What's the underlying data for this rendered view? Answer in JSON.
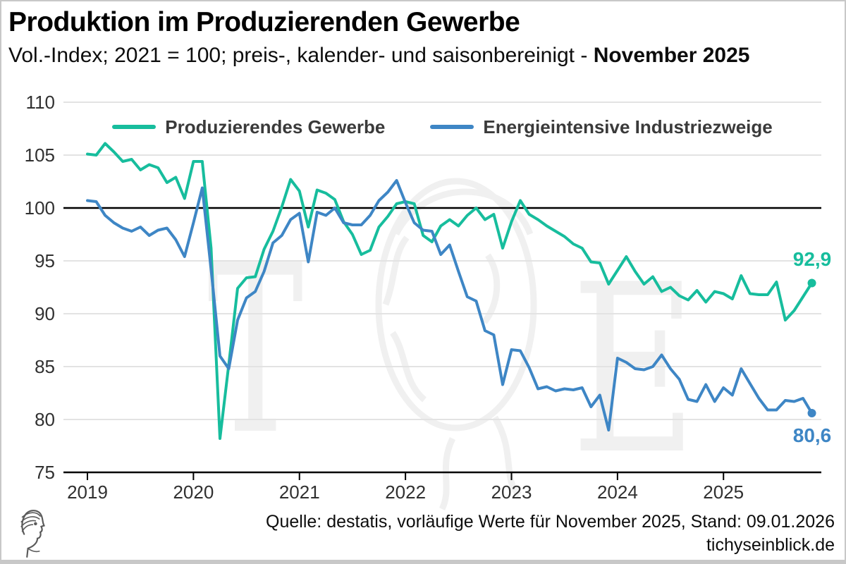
{
  "header": {
    "title": "Produktion im Produzierenden Gewerbe",
    "subtitle": "Vol.-Index; 2021 = 100; preis-, kalender- und saisonbereinigt - ",
    "subtitle_highlight": "November 2025"
  },
  "legend": {
    "items": [
      {
        "label": "Produzierendes Gewerbe",
        "color": "#17bd9d"
      },
      {
        "label": "Energieintensive Industriezweige",
        "color": "#3e86c5"
      }
    ]
  },
  "chart_data": {
    "type": "line",
    "title": "Produktion im Produzierenden Gewerbe",
    "subtitle": "Vol.-Index; 2021 = 100; preis-, kalender- und saisonbereinigt - November 2025",
    "frequency": "monthly",
    "x_start": "2019-01",
    "x_end": "2025-11",
    "ylim": [
      75,
      110
    ],
    "yticks": [
      110,
      105,
      100,
      95,
      90,
      85,
      80,
      75
    ],
    "xticks": [
      2019,
      2020,
      2021,
      2022,
      2023,
      2024,
      2025
    ],
    "baseline": 100,
    "grid": "horizontal",
    "legend_position": "top-inside",
    "months": [
      "2019-01",
      "2019-02",
      "2019-03",
      "2019-04",
      "2019-05",
      "2019-06",
      "2019-07",
      "2019-08",
      "2019-09",
      "2019-10",
      "2019-11",
      "2019-12",
      "2020-01",
      "2020-02",
      "2020-03",
      "2020-04",
      "2020-05",
      "2020-06",
      "2020-07",
      "2020-08",
      "2020-09",
      "2020-10",
      "2020-11",
      "2020-12",
      "2021-01",
      "2021-02",
      "2021-03",
      "2021-04",
      "2021-05",
      "2021-06",
      "2021-07",
      "2021-08",
      "2021-09",
      "2021-10",
      "2021-11",
      "2021-12",
      "2022-01",
      "2022-02",
      "2022-03",
      "2022-04",
      "2022-05",
      "2022-06",
      "2022-07",
      "2022-08",
      "2022-09",
      "2022-10",
      "2022-11",
      "2022-12",
      "2023-01",
      "2023-02",
      "2023-03",
      "2023-04",
      "2023-05",
      "2023-06",
      "2023-07",
      "2023-08",
      "2023-09",
      "2023-10",
      "2023-11",
      "2023-12",
      "2024-01",
      "2024-02",
      "2024-03",
      "2024-04",
      "2024-05",
      "2024-06",
      "2024-07",
      "2024-08",
      "2024-09",
      "2024-10",
      "2024-11",
      "2024-12",
      "2025-01",
      "2025-02",
      "2025-03",
      "2025-04",
      "2025-05",
      "2025-06",
      "2025-07",
      "2025-08",
      "2025-09",
      "2025-10",
      "2025-11"
    ],
    "series": [
      {
        "name": "Produzierendes Gewerbe",
        "color": "#17bd9d",
        "end_label": "92,9",
        "end_value": 92.9,
        "values": [
          105.1,
          105.0,
          106.1,
          105.3,
          104.4,
          104.6,
          103.6,
          104.1,
          103.8,
          102.4,
          102.9,
          100.9,
          104.4,
          104.4,
          96.2,
          78.2,
          85.2,
          92.4,
          93.4,
          93.5,
          96.1,
          97.8,
          100.1,
          102.7,
          101.6,
          98.2,
          101.7,
          101.4,
          100.8,
          98.7,
          97.5,
          95.6,
          96.0,
          98.2,
          99.2,
          100.4,
          100.6,
          100.4,
          97.4,
          96.8,
          98.3,
          98.9,
          98.3,
          99.3,
          100.0,
          98.9,
          99.4,
          96.2,
          98.7,
          100.7,
          99.4,
          98.9,
          98.3,
          97.8,
          97.3,
          96.6,
          96.2,
          94.9,
          94.8,
          92.8,
          94.1,
          95.4,
          94.0,
          92.8,
          93.5,
          92.1,
          92.5,
          91.7,
          91.3,
          92.2,
          91.1,
          92.1,
          91.9,
          91.4,
          93.6,
          91.9,
          91.8,
          91.8,
          93.0,
          89.4,
          90.3,
          91.6,
          92.9
        ]
      },
      {
        "name": "Energieintensive Industriezweige",
        "color": "#3e86c5",
        "end_label": "80,6",
        "end_value": 80.6,
        "values": [
          100.7,
          100.6,
          99.3,
          98.6,
          98.1,
          97.8,
          98.2,
          97.4,
          97.9,
          98.1,
          97.0,
          95.4,
          98.6,
          101.9,
          94.2,
          86.0,
          84.8,
          89.4,
          91.5,
          92.1,
          94.0,
          96.7,
          97.4,
          98.9,
          99.5,
          94.9,
          99.6,
          99.3,
          100.0,
          98.6,
          98.4,
          98.4,
          99.3,
          100.7,
          101.5,
          102.6,
          100.5,
          98.6,
          97.9,
          97.8,
          95.6,
          96.5,
          94.0,
          91.6,
          91.2,
          88.4,
          88.0,
          83.3,
          86.6,
          86.5,
          84.9,
          82.9,
          83.1,
          82.7,
          82.9,
          82.8,
          83.0,
          81.2,
          82.3,
          79.0,
          85.8,
          85.4,
          84.8,
          84.7,
          85.0,
          86.1,
          84.8,
          83.8,
          81.9,
          81.7,
          83.3,
          81.7,
          83.0,
          82.3,
          84.8,
          83.4,
          82.0,
          80.9,
          80.9,
          81.8,
          81.7,
          82.0,
          80.6
        ]
      }
    ]
  },
  "watermark": {
    "letter_left": "T",
    "letter_right": "E"
  },
  "footer": {
    "source": "Quelle: destatis, vorläufige Werte für November 2025, Stand: 09.01.2026",
    "site": "tichyseinblick.de"
  }
}
